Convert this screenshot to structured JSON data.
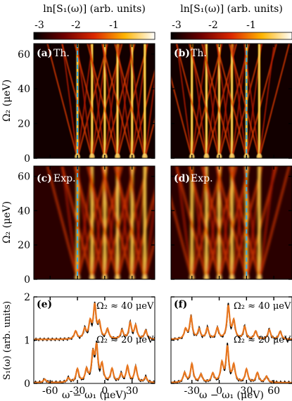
{
  "colorbars": [
    {
      "label": "ln[S₁(ω)] (arb. units)",
      "ticks": [
        "-3",
        "-2",
        "-1"
      ],
      "tick_values": [
        -3,
        -2,
        -1
      ],
      "range": [
        -3.4,
        -0.3
      ]
    },
    {
      "label": "ln[S₁(ω)] (arb. units)",
      "ticks": [
        "-3",
        "-2",
        "-1"
      ],
      "tick_values": [
        -3,
        -2,
        -1
      ],
      "range": [
        -3.4,
        -0.3
      ]
    }
  ],
  "axes": {
    "ylabel_map": "Ω₂ (μeV)",
    "ylabel_spec": "S₁(ω) (arb. units)",
    "xlabel": "ω − ω₁ (μeV)",
    "left_xticks": [
      "-60",
      "-30",
      "0",
      "30"
    ],
    "right_xticks": [
      "-30",
      "0",
      "30",
      "60"
    ],
    "map_yticks": [
      "0",
      "20",
      "40",
      "60"
    ],
    "spec_yticks": [
      "0",
      "1",
      "2"
    ]
  },
  "panels": {
    "a": {
      "label": "(a)",
      "text": "Th."
    },
    "b": {
      "label": "(b)",
      "text": "Th."
    },
    "c": {
      "label": "(c)",
      "text": "Exp."
    },
    "d": {
      "label": "(d)",
      "text": "Exp."
    },
    "e": {
      "label": "(e)",
      "upper": "Ω₂ ≈ 40 μeV",
      "lower": "Ω₂ ≈ 20 μeV"
    },
    "f": {
      "label": "(f)",
      "upper": "Ω₂ ≈ 40 μeV",
      "lower": "Ω₂ ≈ 20 μeV"
    }
  },
  "colors": {
    "experiment_line": "#000000",
    "theory_line": "#e8761e",
    "dashed_marker": "#3fb0e0"
  },
  "chart_data": [
    {
      "type": "heatmap",
      "panel": "a",
      "title": "Th.",
      "xlim": [
        -78,
        55
      ],
      "ylim": [
        0,
        66
      ],
      "xticks": [
        -60,
        -30,
        0,
        30
      ],
      "yticks": [
        0,
        20,
        40,
        60
      ],
      "ylabel": "Ω₂ (μeV)",
      "colorbar": "ln[S₁(ω)] (arb. units)",
      "dashed_line_x": -30,
      "ridges_at_zero": [
        -30,
        -14,
        0,
        14,
        30,
        44
      ]
    },
    {
      "type": "heatmap",
      "panel": "b",
      "title": "Th.",
      "xlim": [
        -53,
        80
      ],
      "ylim": [
        0,
        66
      ],
      "xticks": [
        -30,
        0,
        30,
        60
      ],
      "yticks": [
        0,
        20,
        40,
        60
      ],
      "colorbar": "ln[S₁(ω)] (arb. units)",
      "dashed_line_x": 30,
      "ridges_at_zero": [
        -30,
        -14,
        0,
        14,
        30,
        44
      ]
    },
    {
      "type": "heatmap",
      "panel": "c",
      "title": "Exp.",
      "xlim": [
        -78,
        55
      ],
      "ylim": [
        0,
        66
      ],
      "xticks": [
        -60,
        -30,
        0,
        30
      ],
      "yticks": [
        0,
        20,
        40,
        60
      ],
      "ylabel": "Ω₂ (μeV)",
      "dashed_line_x": -30,
      "ridges_at_zero": [
        -30,
        -14,
        0,
        14,
        30,
        44
      ]
    },
    {
      "type": "heatmap",
      "panel": "d",
      "title": "Exp.",
      "xlim": [
        -53,
        80
      ],
      "ylim": [
        0,
        66
      ],
      "xticks": [
        -30,
        0,
        30,
        60
      ],
      "yticks": [
        0,
        20,
        40,
        60
      ],
      "dashed_line_x": 30,
      "ridges_at_zero": [
        -30,
        -14,
        0,
        14,
        30,
        44
      ]
    },
    {
      "type": "line",
      "panel": "e",
      "xlim": [
        -78,
        55
      ],
      "ylim": [
        0,
        2
      ],
      "xticks": [
        -60,
        -30,
        0,
        30
      ],
      "yticks": [
        0,
        1,
        2
      ],
      "xlabel": "ω − ω₁ (μeV)",
      "ylabel": "S₁(ω) (arb. units)",
      "traces": [
        {
          "annotation": "Ω₂ ≈ 40 μeV",
          "offset": 1.0,
          "peaks": [
            [
              -32,
              0.18
            ],
            [
              -22,
              0.22
            ],
            [
              -16,
              0.36
            ],
            [
              -11,
              0.75
            ],
            [
              -6,
              0.34
            ],
            [
              3,
              0.22
            ],
            [
              19,
              0.2
            ],
            [
              28,
              0.36
            ],
            [
              34,
              0.3
            ],
            [
              45,
              0.2
            ]
          ]
        },
        {
          "annotation": "Ω₂ ≈ 20 μeV",
          "offset": 0.0,
          "peaks": [
            [
              -66,
              0.08
            ],
            [
              -40,
              0.1
            ],
            [
              -30,
              0.3
            ],
            [
              -20,
              0.28
            ],
            [
              -13,
              0.6
            ],
            [
              -9,
              0.78
            ],
            [
              -3,
              0.38
            ],
            [
              8,
              0.3
            ],
            [
              18,
              0.18
            ],
            [
              25,
              0.36
            ],
            [
              34,
              0.36
            ],
            [
              45,
              0.12
            ]
          ]
        }
      ]
    },
    {
      "type": "line",
      "panel": "f",
      "xlim": [
        -53,
        80
      ],
      "ylim": [
        0,
        2
      ],
      "xticks": [
        -30,
        0,
        30,
        60
      ],
      "yticks": [
        0,
        1,
        2
      ],
      "xlabel": "ω − ω₁ (μeV)",
      "traces": [
        {
          "annotation": "Ω₂ ≈ 40 μeV",
          "offset": 1.0,
          "peaks": [
            [
              -37,
              0.22
            ],
            [
              -31,
              0.5
            ],
            [
              -22,
              0.22
            ],
            [
              -13,
              0.25
            ],
            [
              -2,
              0.25
            ],
            [
              10,
              0.75
            ],
            [
              16,
              0.4
            ],
            [
              28,
              0.28
            ],
            [
              40,
              0.18
            ],
            [
              55,
              0.22
            ],
            [
              67,
              0.18
            ]
          ]
        },
        {
          "annotation": "Ω₂ ≈ 20 μeV",
          "offset": 0.0,
          "peaks": [
            [
              -38,
              0.22
            ],
            [
              -30,
              0.42
            ],
            [
              -20,
              0.18
            ],
            [
              -7,
              0.2
            ],
            [
              3,
              0.42
            ],
            [
              9,
              0.8
            ],
            [
              16,
              0.38
            ],
            [
              30,
              0.3
            ],
            [
              42,
              0.22
            ],
            [
              52,
              0.14
            ]
          ]
        }
      ]
    }
  ]
}
